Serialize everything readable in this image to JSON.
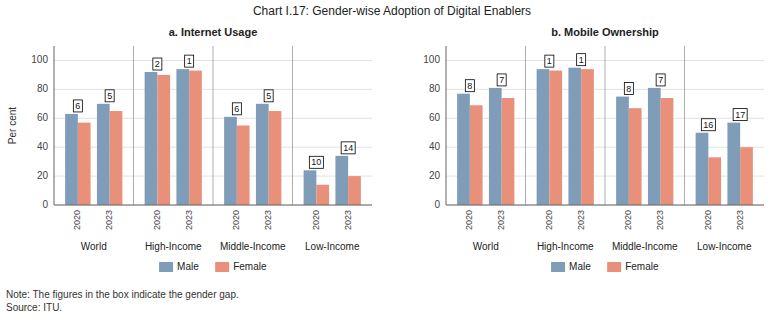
{
  "title": "Chart I.17: Gender-wise Adoption of Digital Enablers",
  "note": [
    "Note: The figures in the box indicate the gender gap.",
    "Source: ITU."
  ],
  "chart_data": [
    {
      "type": "bar",
      "title": "a. Internet Usage",
      "groups": [
        "World",
        "High-Income",
        "Middle-Income",
        "Low-Income"
      ],
      "categories": [
        "2020",
        "2023",
        "2020",
        "2023",
        "2020",
        "2023",
        "2020",
        "2023"
      ],
      "series": [
        {
          "name": "Male",
          "color": "#7f9db8",
          "values": [
            63,
            70,
            92,
            94,
            61,
            70,
            24,
            34
          ]
        },
        {
          "name": "Female",
          "color": "#e8907a",
          "values": [
            57,
            65,
            90,
            93,
            55,
            65,
            14,
            20
          ]
        }
      ],
      "gaps": [
        6,
        5,
        2,
        1,
        6,
        5,
        10,
        14
      ],
      "ylabel": "Per cent",
      "ylim": [
        0,
        110
      ],
      "yticks": [
        0,
        20,
        40,
        60,
        80,
        100
      ],
      "grid": true,
      "legend": "bottom"
    },
    {
      "type": "bar",
      "title": "b. Mobile Ownership",
      "groups": [
        "World",
        "High-Income",
        "Middle-Income",
        "Low-Income"
      ],
      "categories": [
        "2020",
        "2023",
        "2020",
        "2023",
        "2020",
        "2023",
        "2020",
        "2023"
      ],
      "series": [
        {
          "name": "Male",
          "color": "#7f9db8",
          "values": [
            77,
            81,
            94,
            95,
            75,
            81,
            50,
            57
          ]
        },
        {
          "name": "Female",
          "color": "#e8907a",
          "values": [
            69,
            74,
            93,
            94,
            67,
            74,
            33,
            40
          ]
        }
      ],
      "gaps": [
        8,
        7,
        1,
        1,
        8,
        7,
        16,
        17
      ],
      "ylim": [
        0,
        110
      ],
      "yticks": [
        0,
        20,
        40,
        60,
        80,
        100
      ],
      "grid": true,
      "legend": "bottom"
    }
  ]
}
